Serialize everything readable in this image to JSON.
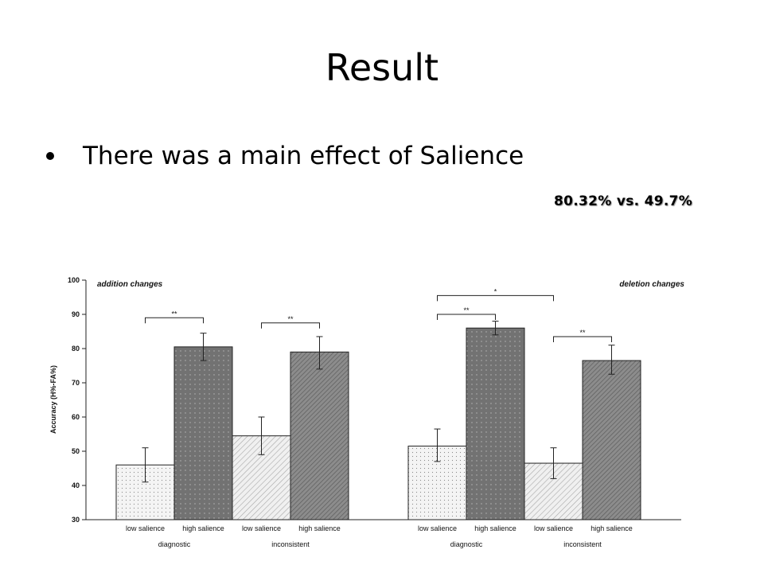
{
  "slide": {
    "title": "Result",
    "bullet": "There was a main effect of Salience",
    "callout": "80.32% vs. 49.7%"
  },
  "chart_data": {
    "type": "bar",
    "ylabel": "Accuracy (H%-FA%)",
    "ylim": [
      30,
      100
    ],
    "yticks": [
      30,
      40,
      50,
      60,
      70,
      80,
      90,
      100
    ],
    "panels": [
      {
        "title": "addition changes",
        "groups": [
          {
            "name": "diagnostic",
            "bars": [
              {
                "label": "low salience",
                "value": 46,
                "err_low": 41,
                "err_high": 51,
                "pattern": "dots"
              },
              {
                "label": "high salience",
                "value": 80.5,
                "err_low": 76.5,
                "err_high": 84.5,
                "pattern": "dark"
              }
            ]
          },
          {
            "name": "inconsistent",
            "bars": [
              {
                "label": "low salience",
                "value": 54.5,
                "err_low": 49,
                "err_high": 60,
                "pattern": "hatch"
              },
              {
                "label": "high salience",
                "value": 79,
                "err_low": 74,
                "err_high": 83.5,
                "pattern": "hatchdark"
              }
            ]
          }
        ],
        "brackets": [
          {
            "from": [
              0,
              0
            ],
            "to": [
              0,
              1
            ],
            "level": 89,
            "label": "**"
          },
          {
            "from": [
              1,
              0
            ],
            "to": [
              1,
              1
            ],
            "level": 87.5,
            "label": "**"
          }
        ]
      },
      {
        "title": "deletion changes",
        "groups": [
          {
            "name": "diagnostic",
            "bars": [
              {
                "label": "low salience",
                "value": 51.5,
                "err_low": 47,
                "err_high": 56.5,
                "pattern": "dots"
              },
              {
                "label": "high salience",
                "value": 86,
                "err_low": 84,
                "err_high": 88,
                "pattern": "dark"
              }
            ]
          },
          {
            "name": "inconsistent",
            "bars": [
              {
                "label": "low salience",
                "value": 46.5,
                "err_low": 42,
                "err_high": 51,
                "pattern": "hatch"
              },
              {
                "label": "high salience",
                "value": 76.5,
                "err_low": 72.5,
                "err_high": 81,
                "pattern": "hatchdark"
              }
            ]
          }
        ],
        "brackets": [
          {
            "from": [
              0,
              0
            ],
            "to": [
              0,
              1
            ],
            "level": 90,
            "label": "**"
          },
          {
            "from": [
              1,
              0
            ],
            "to": [
              1,
              1
            ],
            "level": 83.5,
            "label": "**"
          },
          {
            "from": [
              0,
              0
            ],
            "to": [
              1,
              0
            ],
            "level": 95.5,
            "label": "*"
          }
        ]
      }
    ]
  }
}
